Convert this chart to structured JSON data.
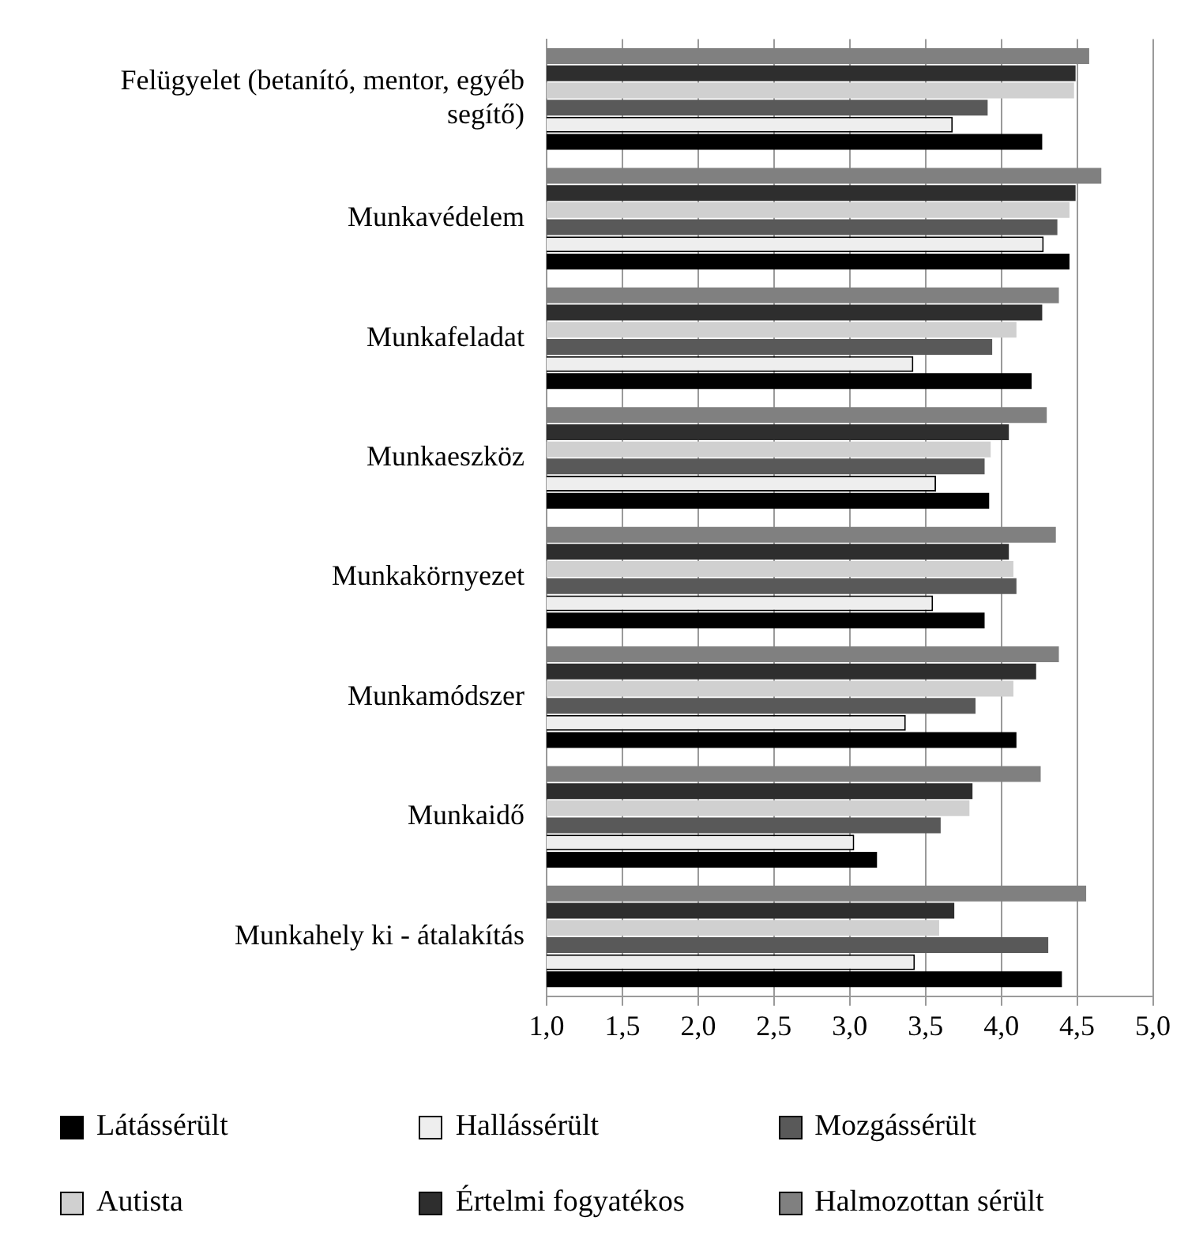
{
  "chart_data": {
    "type": "bar",
    "orientation": "horizontal",
    "categories": [
      "Felügyelet (betanító, mentor, egyéb segítő)",
      "Munkavédelem",
      "Munkafeladat",
      "Munkaeszköz",
      "Munkakörnyezet",
      "Munkamódszer",
      "Munkaidő",
      "Munkahely ki - átalakítás"
    ],
    "series": [
      {
        "name": "Látássérült",
        "color": "#000000",
        "values": [
          4.27,
          4.45,
          4.2,
          3.92,
          3.89,
          4.1,
          3.18,
          4.4
        ]
      },
      {
        "name": "Hallássérült",
        "color": "#eeeeee",
        "values": [
          3.68,
          4.28,
          3.42,
          3.57,
          3.55,
          3.37,
          3.03,
          3.43
        ]
      },
      {
        "name": "Mozgássérült",
        "color": "#595959",
        "values": [
          3.91,
          4.37,
          3.94,
          3.89,
          4.1,
          3.83,
          3.6,
          4.31
        ]
      },
      {
        "name": "Autista",
        "color": "#d0d0d0",
        "values": [
          4.48,
          4.45,
          4.1,
          3.93,
          4.08,
          4.08,
          3.79,
          3.59
        ]
      },
      {
        "name": "Értelmi fogyatékos",
        "color": "#2e2e2e",
        "values": [
          4.49,
          4.49,
          4.27,
          4.05,
          4.05,
          4.23,
          3.81,
          3.69
        ]
      },
      {
        "name": "Halmozottan sérült",
        "color": "#808080",
        "values": [
          4.58,
          4.66,
          4.38,
          4.3,
          4.36,
          4.38,
          4.26,
          4.56
        ]
      }
    ],
    "xlim": [
      1,
      5
    ],
    "xticks": [
      {
        "value": 1,
        "label": "1,0"
      },
      {
        "value": 1.5,
        "label": "1,5"
      },
      {
        "value": 2,
        "label": "2,0"
      },
      {
        "value": 2.5,
        "label": "2,5"
      },
      {
        "value": 3,
        "label": "3,0"
      },
      {
        "value": 3.5,
        "label": "3,5"
      },
      {
        "value": 4,
        "label": "4,0"
      },
      {
        "value": 4.5,
        "label": "4,5"
      },
      {
        "value": 5,
        "label": "5,0"
      }
    ],
    "grid": "x",
    "legend": "bottom"
  }
}
